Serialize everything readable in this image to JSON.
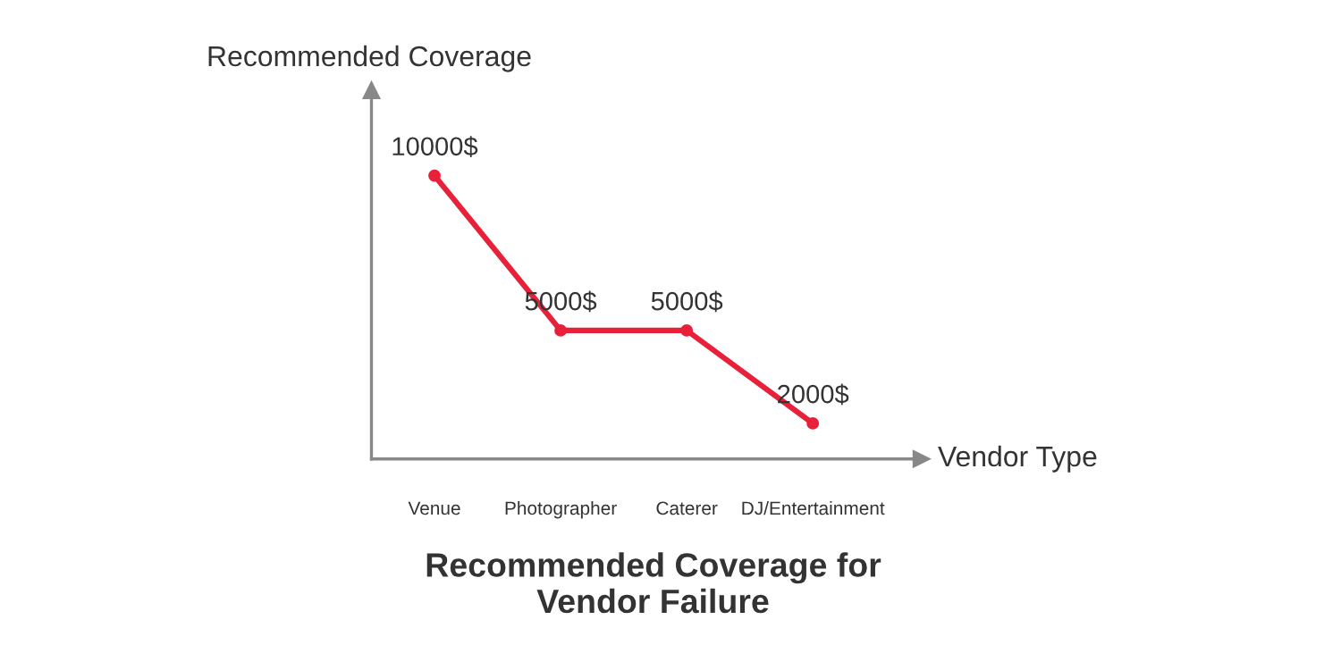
{
  "chart_data": {
    "type": "line",
    "title": "Recommended Coverage for\nVendor Failure",
    "xlabel": "Vendor Type",
    "ylabel": "Recommended Coverage",
    "categories": [
      "Venue",
      "Photographer",
      "Caterer",
      "DJ/Entertainment"
    ],
    "values": [
      10000,
      5000,
      5000,
      2000
    ],
    "value_labels": [
      "10000$",
      "5000$",
      "5000$",
      "2000$"
    ],
    "color": "#e8203a",
    "marker": "circle",
    "line_style": "solid",
    "ylim": [
      850,
      12750
    ],
    "tick_labels": "x",
    "grid": false,
    "legend": false
  }
}
